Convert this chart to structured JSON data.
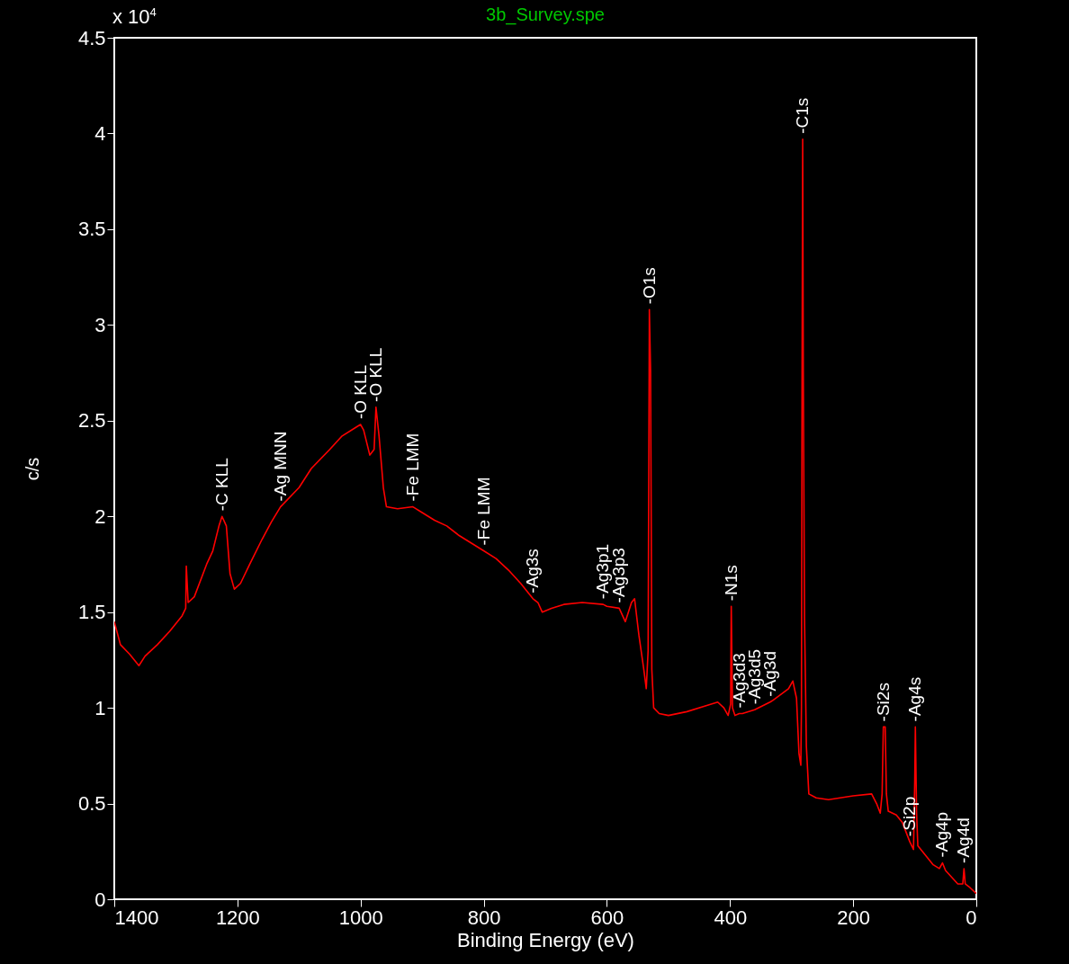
{
  "chart_data": {
    "type": "line",
    "title": "3b_Survey.spe",
    "xlabel": "Binding Energy (eV)",
    "ylabel": "c/s",
    "xlim": [
      1400,
      0
    ],
    "xticks": [
      1400,
      1200,
      1000,
      800,
      600,
      400,
      200,
      0
    ],
    "ylim": [
      0,
      4.5
    ],
    "yticks": [
      0,
      0.5,
      1,
      1.5,
      2,
      2.5,
      3,
      3.5,
      4,
      4.5
    ],
    "grid": false,
    "series": [
      {
        "color": "#ff0000",
        "x": [
          1400,
          1390,
          1375,
          1360,
          1350,
          1330,
          1310,
          1290,
          1284,
          1283,
          1280,
          1270,
          1250,
          1240,
          1230,
          1225,
          1218,
          1212,
          1205,
          1195,
          1180,
          1160,
          1145,
          1130,
          1100,
          1080,
          1050,
          1030,
          1010,
          1000,
          995,
          985,
          978,
          975,
          970,
          963,
          958,
          940,
          915,
          900,
          880,
          860,
          840,
          820,
          800,
          780,
          760,
          740,
          720,
          712,
          705,
          690,
          670,
          640,
          606,
          600,
          580,
          570,
          560,
          555,
          548,
          540,
          536,
          533,
          531,
          529,
          527,
          524,
          515,
          500,
          470,
          440,
          420,
          410,
          403,
          399,
          398,
          396,
          392,
          385,
          380,
          360,
          335,
          330,
          305,
          298,
          292,
          288,
          285,
          284,
          283,
          282,
          281,
          279,
          276,
          272,
          260,
          240,
          200,
          170,
          162,
          156,
          153,
          151,
          148,
          146,
          143,
          130,
          120,
          108,
          102,
          100,
          99,
          97,
          95,
          90,
          70,
          60,
          55,
          50,
          30,
          22,
          20,
          18,
          10,
          0
        ],
        "values": [
          1.45,
          1.33,
          1.28,
          1.22,
          1.27,
          1.33,
          1.4,
          1.48,
          1.52,
          1.74,
          1.55,
          1.58,
          1.75,
          1.82,
          1.95,
          2.0,
          1.95,
          1.7,
          1.62,
          1.65,
          1.75,
          1.88,
          1.97,
          2.05,
          2.15,
          2.25,
          2.35,
          2.42,
          2.46,
          2.48,
          2.45,
          2.32,
          2.35,
          2.57,
          2.42,
          2.15,
          2.05,
          2.04,
          2.05,
          2.02,
          1.98,
          1.95,
          1.9,
          1.86,
          1.82,
          1.78,
          1.72,
          1.65,
          1.57,
          1.55,
          1.5,
          1.52,
          1.54,
          1.55,
          1.54,
          1.53,
          1.52,
          1.45,
          1.55,
          1.57,
          1.38,
          1.2,
          1.1,
          1.3,
          3.08,
          2.76,
          1.2,
          1.0,
          0.97,
          0.96,
          0.98,
          1.01,
          1.03,
          1.0,
          0.96,
          1.02,
          1.53,
          1.0,
          0.96,
          0.97,
          0.97,
          0.99,
          1.03,
          1.04,
          1.1,
          1.14,
          1.05,
          0.76,
          0.7,
          1.0,
          2.75,
          3.97,
          2.75,
          1.47,
          0.8,
          0.55,
          0.53,
          0.52,
          0.54,
          0.55,
          0.5,
          0.45,
          0.55,
          0.9,
          0.9,
          0.55,
          0.46,
          0.44,
          0.4,
          0.3,
          0.26,
          0.62,
          0.9,
          0.45,
          0.28,
          0.26,
          0.18,
          0.16,
          0.19,
          0.15,
          0.08,
          0.08,
          0.16,
          0.08,
          0.06,
          0.03
        ]
      }
    ],
    "annotations": [
      "x 10$^{4}$",
      {
        "text": "-C KLL",
        "x": 1225,
        "y": 2.0
      },
      {
        "text": "-Ag MNN",
        "x": 1130,
        "y": 2.05
      },
      {
        "text": "-O KLL",
        "x": 1000,
        "y": 2.48
      },
      {
        "text": "-O KLL",
        "x": 975,
        "y": 2.57
      },
      {
        "text": "-Fe LMM",
        "x": 915,
        "y": 2.05
      },
      {
        "text": "-Fe LMM",
        "x": 800,
        "y": 1.82
      },
      {
        "text": "-Ag3s",
        "x": 720,
        "y": 1.57
      },
      {
        "text": "-Ag3p1",
        "x": 606,
        "y": 1.54
      },
      {
        "text": "-Ag3p3",
        "x": 580,
        "y": 1.52
      },
      {
        "text": "-O1s",
        "x": 531,
        "y": 3.08
      },
      {
        "text": "-N1s",
        "x": 398,
        "y": 1.53
      },
      {
        "text": "-Ag3d5",
        "x": 360,
        "y": 0.99
      },
      {
        "text": "-Ag3d3",
        "x": 385,
        "y": 0.97
      },
      {
        "text": "-Ag3d",
        "x": 335,
        "y": 1.03
      },
      {
        "text": "-C1s",
        "x": 282,
        "y": 3.97
      },
      {
        "text": "-Si2s",
        "x": 151,
        "y": 0.9
      },
      {
        "text": "-Ag4s",
        "x": 99,
        "y": 0.9
      },
      {
        "text": "-Si2p",
        "x": 108,
        "y": 0.3
      },
      {
        "text": "-Ag4p",
        "x": 55,
        "y": 0.19
      },
      {
        "text": "-Ag4d",
        "x": 20,
        "y": 0.16
      }
    ]
  }
}
